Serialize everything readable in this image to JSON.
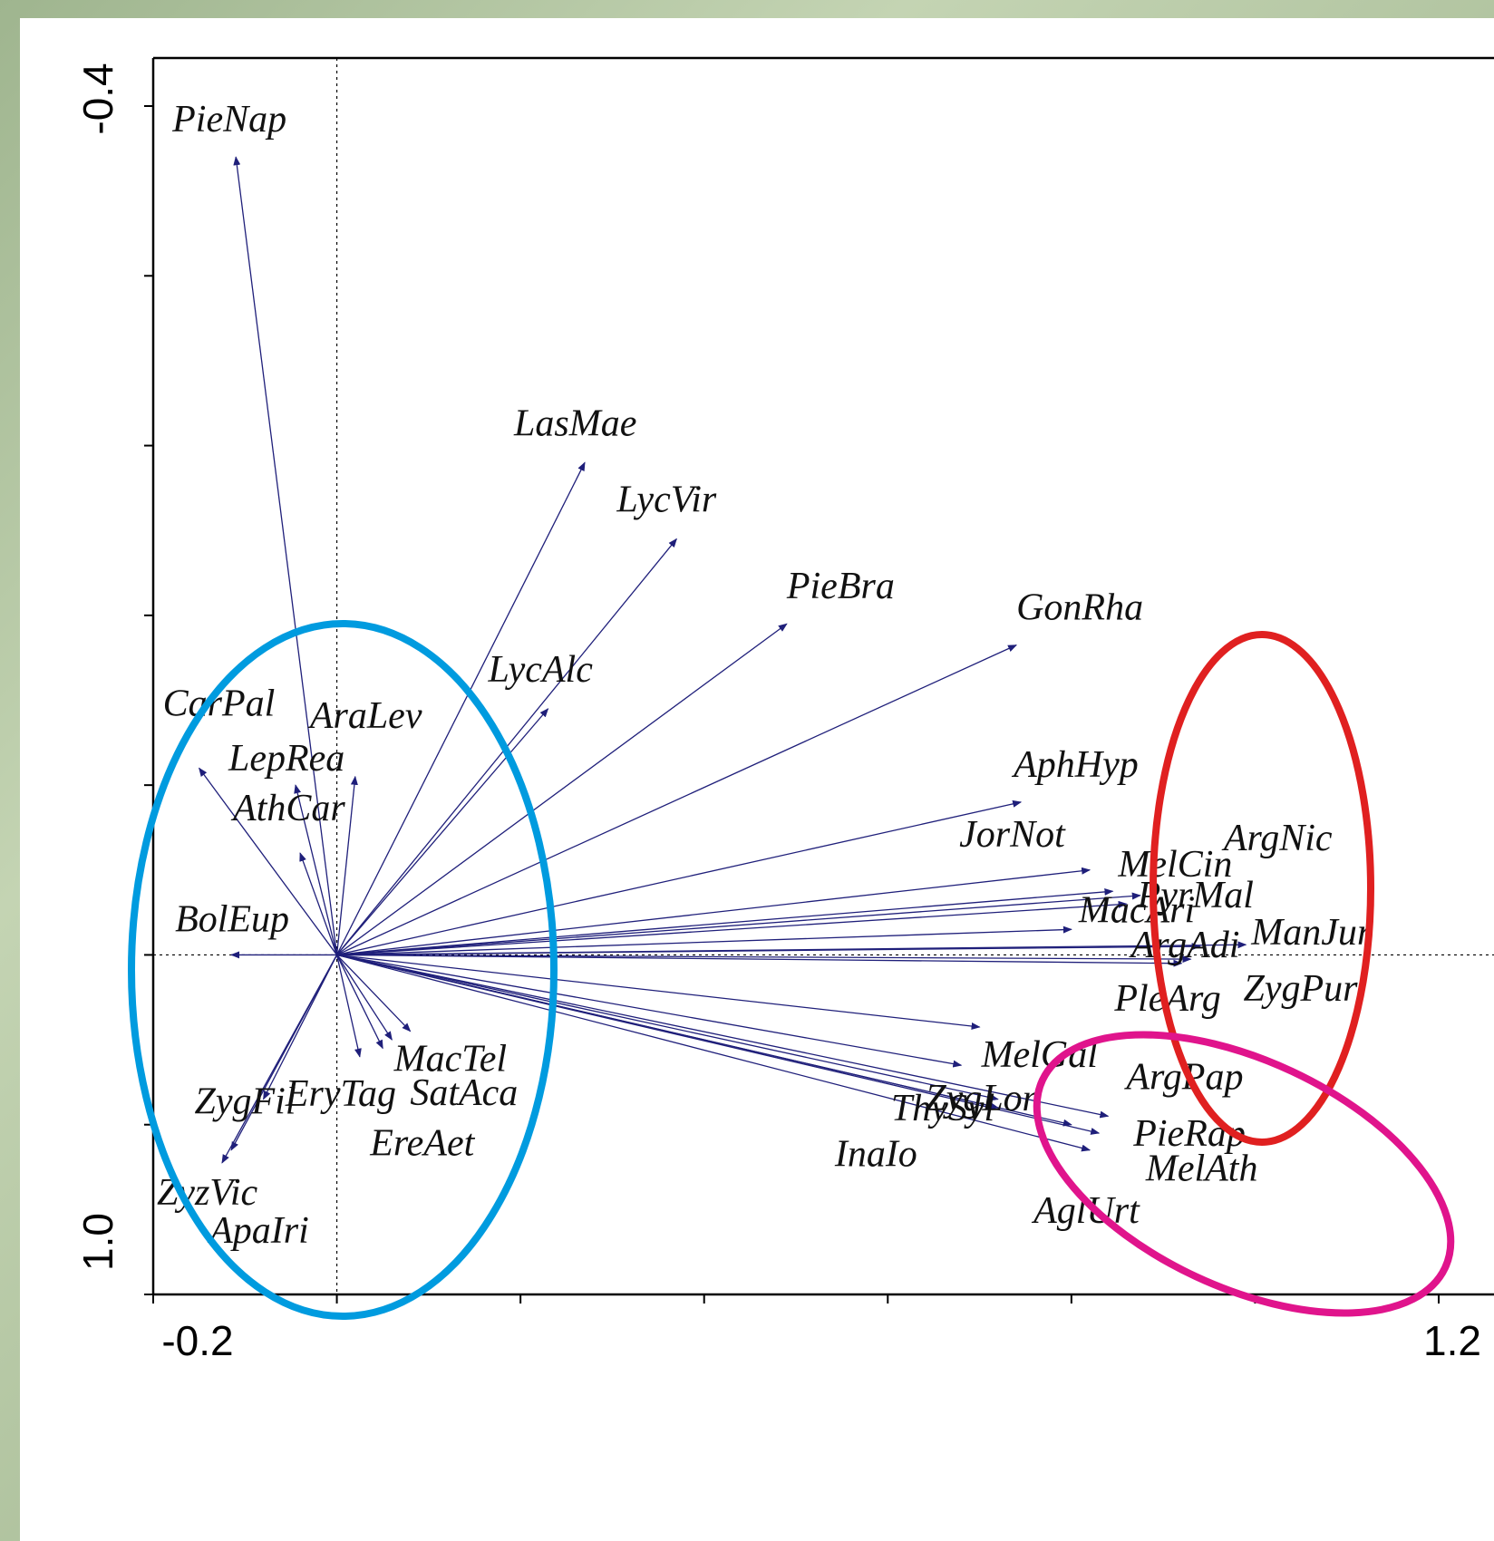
{
  "chart_data": {
    "type": "scatter",
    "subtype": "biplot-vectors",
    "xlim": [
      -0.2,
      1.2
    ],
    "ylim": [
      -0.4,
      1.0
    ],
    "x_tick_labels": [
      "-0.2",
      "1.2"
    ],
    "y_tick_labels": [
      "-0.4",
      "1.0"
    ],
    "zero_reference_lines": true,
    "arrow_color": "#1f1f7a",
    "vectors": [
      {
        "label": "PieNap",
        "x": -0.11,
        "y": 0.94
      },
      {
        "label": "LasMae",
        "x": 0.27,
        "y": 0.58
      },
      {
        "label": "LycVir",
        "x": 0.37,
        "y": 0.49
      },
      {
        "label": "PieBra",
        "x": 0.49,
        "y": 0.39
      },
      {
        "label": "GonRha",
        "x": 0.74,
        "y": 0.365
      },
      {
        "label": "LycAlc",
        "x": 0.23,
        "y": 0.29
      },
      {
        "label": "CarPal",
        "x": -0.15,
        "y": 0.22
      },
      {
        "label": "AraLev",
        "x": 0.02,
        "y": 0.21
      },
      {
        "label": "LepRea",
        "x": -0.045,
        "y": 0.2
      },
      {
        "label": "AthCar",
        "x": -0.04,
        "y": 0.12
      },
      {
        "label": "BolEup",
        "x": -0.115,
        "y": 0.0
      },
      {
        "label": "AphHyp",
        "x": 0.745,
        "y": 0.18
      },
      {
        "label": "JorNot",
        "x": 0.82,
        "y": 0.1
      },
      {
        "label": "MelCin",
        "x": 0.845,
        "y": 0.075
      },
      {
        "label": "ArgNic",
        "x": 0.875,
        "y": 0.07
      },
      {
        "label": "PyrMal",
        "x": 0.86,
        "y": 0.06
      },
      {
        "label": "MacAri",
        "x": 0.8,
        "y": 0.03
      },
      {
        "label": "ArgAdi",
        "x": 0.94,
        "y": 0.01
      },
      {
        "label": "ManJur",
        "x": 0.99,
        "y": 0.012
      },
      {
        "label": "PleArg",
        "x": 0.92,
        "y": -0.01
      },
      {
        "label": "ZygPur",
        "x": 0.93,
        "y": -0.005
      },
      {
        "label": "MelGal",
        "x": 0.7,
        "y": -0.085
      },
      {
        "label": "ZygLon",
        "x": 0.68,
        "y": -0.13
      },
      {
        "label": "ArgPap",
        "x": 0.84,
        "y": -0.19
      },
      {
        "label": "PieRap",
        "x": 0.83,
        "y": -0.21
      },
      {
        "label": "ThySyl",
        "x": 0.72,
        "y": -0.18
      },
      {
        "label": "InaIo",
        "x": 0.72,
        "y": -0.17
      },
      {
        "label": "AglUrt",
        "x": 0.82,
        "y": -0.23
      },
      {
        "label": "MelAth",
        "x": 0.8,
        "y": -0.2
      },
      {
        "label": "MacTel",
        "x": 0.08,
        "y": -0.09
      },
      {
        "label": "EryTag",
        "x": 0.025,
        "y": -0.12
      },
      {
        "label": "SatAca",
        "x": 0.06,
        "y": -0.1
      },
      {
        "label": "EreAet",
        "x": 0.05,
        "y": -0.11
      },
      {
        "label": "ZygFil",
        "x": -0.08,
        "y": -0.17
      },
      {
        "label": "ZyzVic",
        "x": -0.125,
        "y": -0.245
      },
      {
        "label": "ApaIri",
        "x": -0.115,
        "y": -0.23
      }
    ],
    "annotations": [
      {
        "shape": "ellipse",
        "color": "#009bdf",
        "encloses": [
          "CarPal",
          "AraLev",
          "LepRea",
          "AthCar",
          "BolEup",
          "MacTel",
          "EryTag",
          "SatAca",
          "EreAet",
          "ZygFil",
          "ZyzVic",
          "ApaIri"
        ]
      },
      {
        "shape": "ellipse",
        "color": "#e02020",
        "encloses": [
          "ArgNic",
          "MelCin",
          "PyrMal",
          "MacAri",
          "ArgAdi",
          "ManJur",
          "PleArg",
          "ZygPur"
        ]
      },
      {
        "shape": "ellipse",
        "color": "#e0148c",
        "encloses": [
          "MelGal",
          "ZygLon",
          "ArgPap",
          "PieRap",
          "ThySyl",
          "InaIo",
          "AglUrt",
          "MelAth"
        ]
      }
    ]
  }
}
